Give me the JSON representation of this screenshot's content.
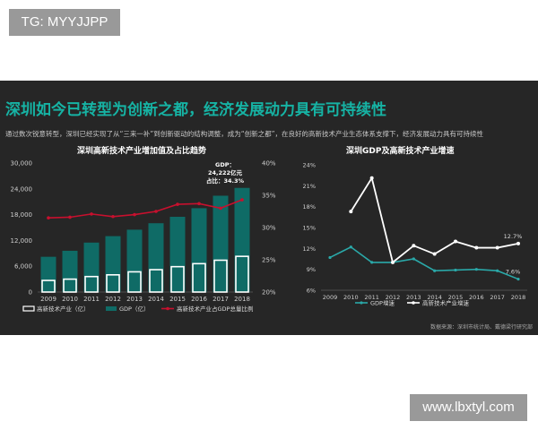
{
  "watermark_top": "TG: MYYJJPP",
  "watermark_bottom": "www.lbxtyl.com",
  "headline": "深圳如今已转型为创新之都，经济发展动力具有可持续性",
  "description": "通过数次锐意转型，深圳已经实现了从“三来一补”到创新驱动的结构调整，成为“创新之都”，在良好的高新技术产业生态体系支撑下，经济发展动力具有可持续性",
  "source_note": "数据来源：深圳市统计局、戴德梁行研究部",
  "colors": {
    "panel_bg": "#262626",
    "headline": "#16b3a4",
    "gdp_bar": "#0f6b66",
    "hightech_bar": "#ffffff",
    "share_line": "#c8102e",
    "gdp_growth_line": "#2aa8a8",
    "hightech_growth_line": "#ffffff"
  },
  "chart_data": [
    {
      "type": "bar",
      "title": "深圳高新技术产业增加值及占比趋势",
      "categories": [
        "2009",
        "2010",
        "2011",
        "2012",
        "2013",
        "2014",
        "2015",
        "2016",
        "2017",
        "2018"
      ],
      "series": [
        {
          "name": "高新技术产业（亿）",
          "kind": "bar",
          "axis": "left",
          "values": [
            2700,
            3000,
            3600,
            4000,
            4700,
            5200,
            5900,
            6600,
            7400,
            8300
          ]
        },
        {
          "name": "GDP（亿）",
          "kind": "bar",
          "axis": "left",
          "values": [
            8200,
            9600,
            11500,
            13000,
            14500,
            16000,
            17500,
            19500,
            22400,
            24222
          ]
        },
        {
          "name": "高新技术产业占GDP总量比例",
          "kind": "line",
          "axis": "right",
          "values": [
            31.5,
            31.6,
            32.1,
            31.7,
            32.0,
            32.5,
            33.6,
            33.7,
            33.0,
            34.3
          ]
        }
      ],
      "left_axis": {
        "ticks": [
          "0",
          "6,000",
          "12,000",
          "18,000",
          "24,000",
          "30,000"
        ],
        "ylim": [
          0,
          30000
        ]
      },
      "right_axis": {
        "ticks": [
          "20%",
          "25%",
          "30%",
          "35%",
          "40%"
        ],
        "ylim": [
          20,
          40
        ]
      },
      "annotation_lines": [
        "GDP：",
        "24,222亿元",
        "占比：34.3%"
      ],
      "legend_position": "bottom"
    },
    {
      "type": "line",
      "title": "深圳GDP及高新技术产业增速",
      "categories": [
        "2009",
        "2010",
        "2011",
        "2012",
        "2013",
        "2014",
        "2015",
        "2016",
        "2017",
        "2018"
      ],
      "series": [
        {
          "name": "GDP增速",
          "values": [
            10.7,
            12.2,
            10.0,
            10.0,
            10.5,
            8.8,
            8.9,
            9.0,
            8.8,
            7.6
          ]
        },
        {
          "name": "高新技术产业增速",
          "values": [
            null,
            17.3,
            22.1,
            10.0,
            12.4,
            11.2,
            13.0,
            12.1,
            12.1,
            12.7
          ]
        }
      ],
      "y_axis": {
        "ticks": [
          "6%",
          "9%",
          "12%",
          "15%",
          "18%",
          "21%",
          "24%"
        ],
        "ylim": [
          6,
          24
        ]
      },
      "data_labels": [
        {
          "series": 1,
          "index": 9,
          "text": "12.7%"
        },
        {
          "series": 0,
          "index": 9,
          "text": "7.6%"
        }
      ],
      "legend_position": "bottom"
    }
  ]
}
